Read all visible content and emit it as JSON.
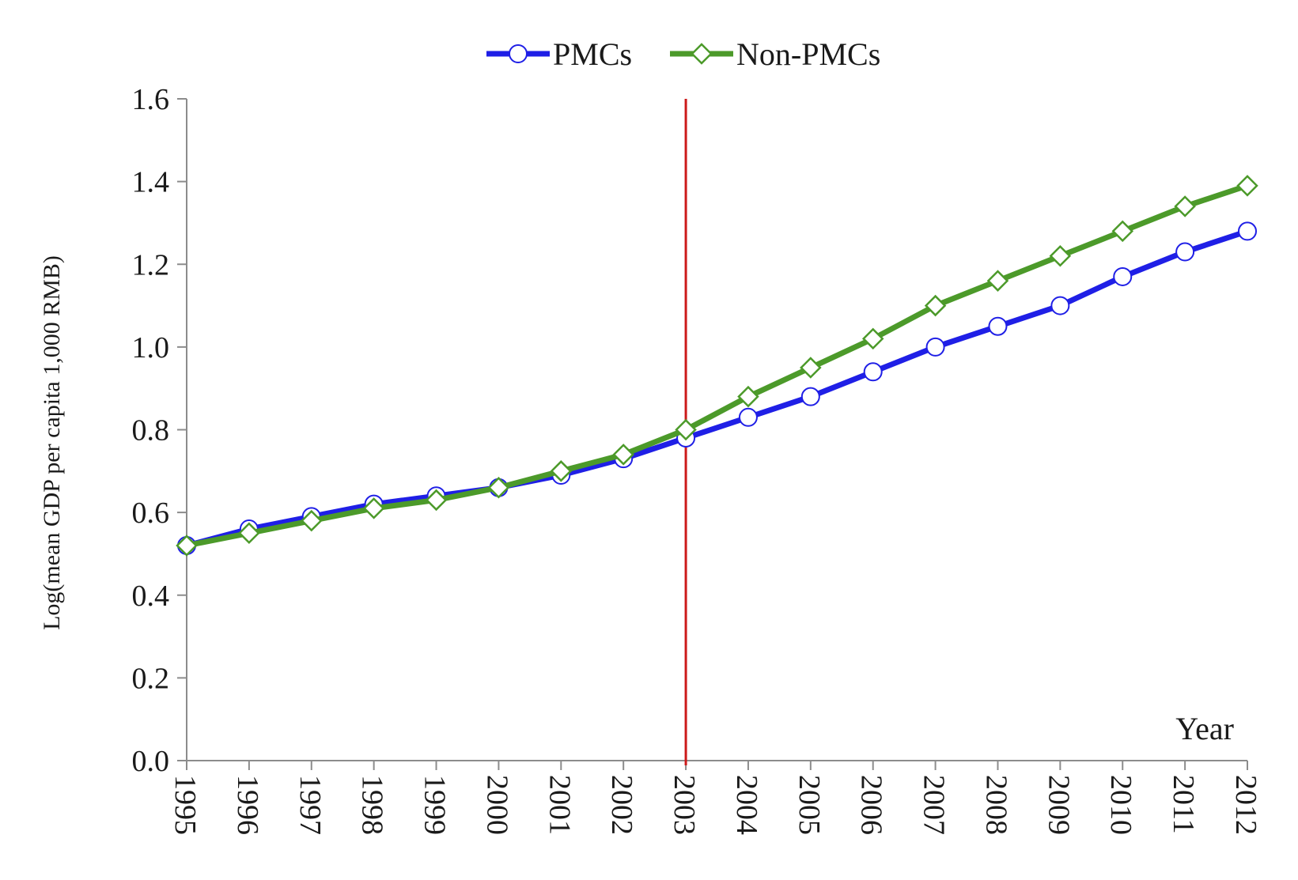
{
  "chart_data": {
    "type": "line",
    "title": "",
    "xlabel": "Year",
    "ylabel": "Log(mean GDP per capita 1,000 RMB)",
    "ylim": [
      0,
      1.6
    ],
    "yticks": [
      "0.0",
      "0.2",
      "0.4",
      "0.6",
      "0.8",
      "1.0",
      "1.2",
      "1.4",
      "1.6"
    ],
    "x": [
      "1995",
      "1996",
      "1997",
      "1998",
      "1999",
      "2000",
      "2001",
      "2002",
      "2003",
      "2004",
      "2005",
      "2006",
      "2007",
      "2008",
      "2009",
      "2010",
      "2011",
      "2012"
    ],
    "reference_line_x": "2003",
    "grid": false,
    "legend_position": "top-center",
    "series": [
      {
        "name": "PMCs",
        "color": "#1f1fe6",
        "marker": "circle",
        "values": [
          0.52,
          0.56,
          0.59,
          0.62,
          0.64,
          0.66,
          0.69,
          0.73,
          0.78,
          0.83,
          0.88,
          0.94,
          1.0,
          1.05,
          1.1,
          1.17,
          1.23,
          1.28
        ]
      },
      {
        "name": "Non-PMCs",
        "color": "#4c9a2a",
        "marker": "diamond",
        "values": [
          0.52,
          0.55,
          0.58,
          0.61,
          0.63,
          0.66,
          0.7,
          0.74,
          0.8,
          0.88,
          0.95,
          1.02,
          1.1,
          1.16,
          1.22,
          1.28,
          1.34,
          1.39
        ]
      }
    ],
    "colors": {
      "axis": "#8c8c8c",
      "reference_line": "#cc1a1a",
      "marker_fill": "#ffffff"
    }
  }
}
